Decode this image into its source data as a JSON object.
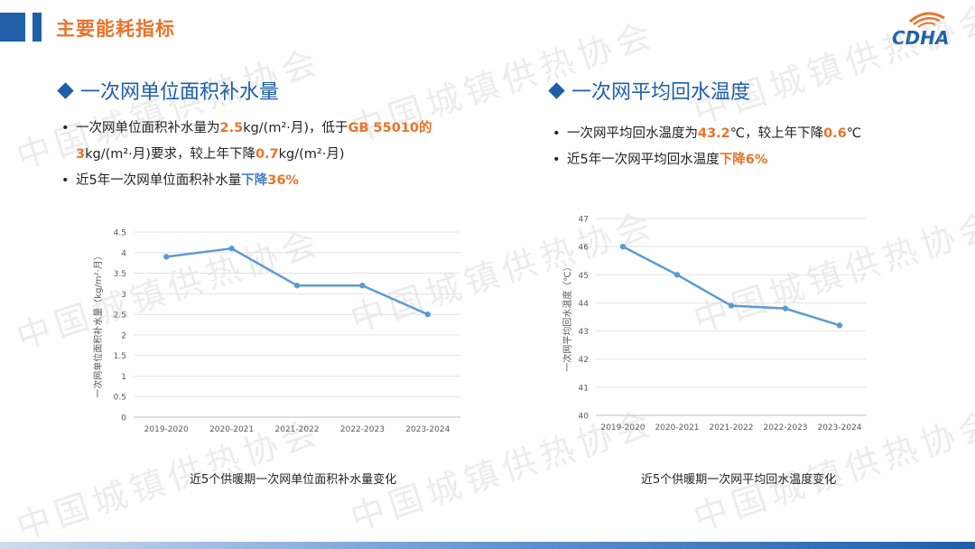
{
  "header": {
    "title": "主要能耗指标",
    "logo_text": "CDHA"
  },
  "watermark": {
    "text": "中国城镇供热协会"
  },
  "left": {
    "heading": "一次网单位面积补水量",
    "b1_pre": "一次网单位面积补水量为",
    "b1_val": "2.5",
    "b1_mid": "kg/(m²·月)，低于",
    "b1_std": "GB 55010的",
    "b1_std_val": "3",
    "b1_end1": "kg/(m²·月)要求，较上年下降",
    "b1_drop": "0.7",
    "b1_end2": "kg/(m²·月)",
    "b2_pre": "近5年一次网单位面积补水量",
    "b2_hl1": "下降",
    "b2_hl2": "36%"
  },
  "right": {
    "heading": "一次网平均回水温度",
    "b1_pre": "一次网平均回水温度为",
    "b1_val": "43.2",
    "b1_mid": "℃，较上年下降",
    "b1_drop": "0.6",
    "b1_end": "℃",
    "b2_pre": "近5年一次网平均回水温度",
    "b2_hl": "下降6%"
  },
  "chart_data": [
    {
      "type": "line",
      "categories": [
        "2019-2020",
        "2020-2021",
        "2021-2022",
        "2022-2023",
        "2023-2024"
      ],
      "values": [
        3.9,
        4.1,
        3.2,
        3.2,
        2.5
      ],
      "ylim": [
        0,
        4.5
      ],
      "yticks": [
        "0",
        "0.5",
        "1",
        "1.5",
        "2",
        "2.5",
        "3",
        "3.5",
        "4",
        "4.5"
      ],
      "xlabel": "",
      "ylabel": "一次网单位面积补水量（kg/m²·月）",
      "title": "近5个供暖期一次网单位面积补水量变化",
      "color": "#5b9bd5",
      "grid": true
    },
    {
      "type": "line",
      "categories": [
        "2019-2020",
        "2020-2021",
        "2021-2022",
        "2022-2023",
        "2023-2024"
      ],
      "values": [
        46.0,
        45.0,
        43.9,
        43.8,
        43.2
      ],
      "ylim": [
        40,
        47
      ],
      "yticks": [
        "40",
        "41",
        "42",
        "43",
        "44",
        "45",
        "46",
        "47"
      ],
      "xlabel": "",
      "ylabel": "一次网平均回水温度（℃）",
      "title": "近5个供暖期一次网平均回水温度变化",
      "color": "#5b9bd5",
      "grid": true
    }
  ]
}
